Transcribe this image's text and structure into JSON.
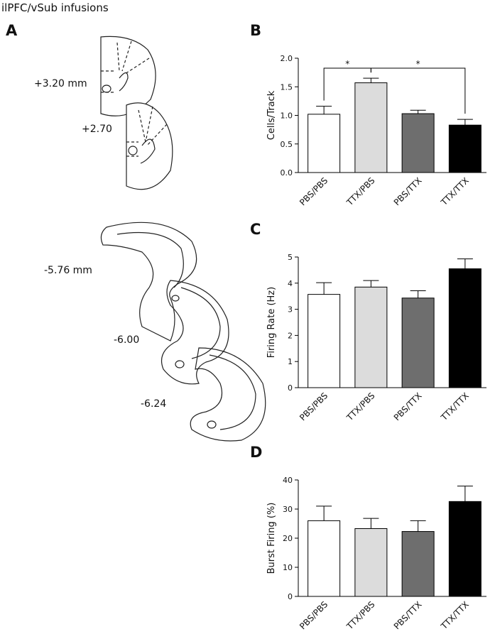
{
  "figure": {
    "title": "ilPFC/vSub infusions",
    "panel": "A",
    "levels": [
      "+3.20 mm",
      "+2.70",
      "-5.76 mm",
      "-6.00",
      "-6.24"
    ]
  },
  "chart_data": [
    {
      "type": "bar",
      "panel": "B",
      "y_label": "Cells/Track",
      "categories": [
        "PBS/PBS",
        "TTX/PBS",
        "PBS/TTX",
        "TTX/TTX"
      ],
      "values": [
        1.02,
        1.57,
        1.03,
        0.83
      ],
      "errors": [
        0.14,
        0.08,
        0.06,
        0.1
      ],
      "colors": [
        "#ffffff",
        "#dcdcdc",
        "#6e6e6e",
        "#000000"
      ],
      "ylim": [
        0,
        2
      ],
      "yticks": [
        {
          "value": 0,
          "label": "0.0"
        },
        {
          "value": 0.5,
          "label": "0.5"
        },
        {
          "value": 1,
          "label": "1.0"
        },
        {
          "value": 1.5,
          "label": "1.5"
        },
        {
          "value": 2,
          "label": "2.0"
        }
      ],
      "annotations": [
        "*",
        "*"
      ]
    },
    {
      "type": "bar",
      "panel": "C",
      "y_label": "Firing Rate (Hz)",
      "categories": [
        "PBS/PBS",
        "TTX/PBS",
        "PBS/TTX",
        "TTX/TTX"
      ],
      "values": [
        3.57,
        3.85,
        3.43,
        4.55
      ],
      "errors": [
        0.45,
        0.25,
        0.28,
        0.38
      ],
      "colors": [
        "#ffffff",
        "#dcdcdc",
        "#6e6e6e",
        "#000000"
      ],
      "ylim": [
        0,
        5
      ],
      "yticks": [
        0,
        1,
        2,
        3,
        4,
        5
      ]
    },
    {
      "type": "bar",
      "panel": "D",
      "y_label": "Burst Firing (%)",
      "categories": [
        "PBS/PBS",
        "TTX/PBS",
        "PBS/TTX",
        "TTX/TTX"
      ],
      "values": [
        26,
        23.3,
        22.3,
        32.6
      ],
      "errors": [
        5,
        3.5,
        3.7,
        5.3
      ],
      "colors": [
        "#ffffff",
        "#dcdcdc",
        "#6e6e6e",
        "#000000"
      ],
      "ylim": [
        0,
        40
      ],
      "yticks": [
        0,
        10,
        20,
        30,
        40
      ]
    }
  ]
}
